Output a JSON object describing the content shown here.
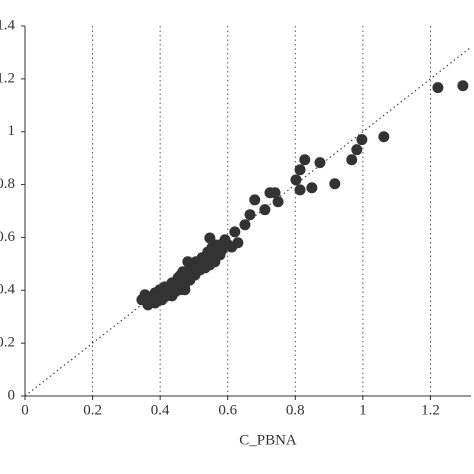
{
  "chart_data": {
    "type": "scatter",
    "xlabel": "C_PBNA",
    "xlim": [
      0,
      1.32
    ],
    "ylim": [
      0,
      1.4
    ],
    "xticks": [
      0,
      0.2,
      0.4,
      0.6,
      0.8,
      1,
      1.2
    ],
    "yticks": [
      0,
      0.2,
      0.4,
      0.6,
      0.8,
      1,
      1.2,
      1.4
    ],
    "grid": "x",
    "color": "#333333",
    "x": [
      1.296,
      1.222,
      1.062,
      0.997,
      0.982,
      0.967,
      0.917,
      0.873,
      0.828,
      0.814,
      0.802,
      0.814,
      0.849,
      0.74,
      0.725,
      0.749,
      0.71,
      0.68,
      0.666,
      0.651,
      0.621,
      0.63,
      0.612,
      0.592,
      0.577,
      0.562,
      0.553,
      0.541,
      0.524,
      0.506,
      0.488,
      0.467,
      0.453,
      0.435,
      0.414,
      0.399,
      0.385,
      0.37,
      0.361,
      0.547,
      0.562,
      0.533,
      0.518,
      0.503,
      0.488,
      0.473,
      0.459,
      0.444,
      0.429,
      0.414,
      0.399,
      0.385,
      0.37,
      0.405,
      0.429,
      0.453,
      0.473,
      0.494,
      0.512,
      0.536,
      0.562,
      0.583,
      0.601,
      0.459,
      0.482,
      0.435,
      0.417,
      0.393,
      0.364,
      0.355,
      0.346,
      0.577,
      0.547,
      0.518,
      0.473
    ],
    "y": [
      1.174,
      1.167,
      0.981,
      0.97,
      0.932,
      0.894,
      0.803,
      0.883,
      0.894,
      0.856,
      0.818,
      0.78,
      0.788,
      0.769,
      0.769,
      0.735,
      0.705,
      0.742,
      0.686,
      0.648,
      0.621,
      0.58,
      0.564,
      0.591,
      0.572,
      0.572,
      0.561,
      0.545,
      0.523,
      0.508,
      0.485,
      0.47,
      0.447,
      0.428,
      0.413,
      0.402,
      0.39,
      0.371,
      0.364,
      0.598,
      0.508,
      0.485,
      0.477,
      0.458,
      0.439,
      0.42,
      0.402,
      0.394,
      0.383,
      0.375,
      0.364,
      0.352,
      0.364,
      0.364,
      0.402,
      0.417,
      0.447,
      0.47,
      0.496,
      0.523,
      0.534,
      0.553,
      0.572,
      0.455,
      0.508,
      0.379,
      0.394,
      0.379,
      0.345,
      0.383,
      0.364,
      0.534,
      0.496,
      0.508,
      0.402
    ]
  }
}
